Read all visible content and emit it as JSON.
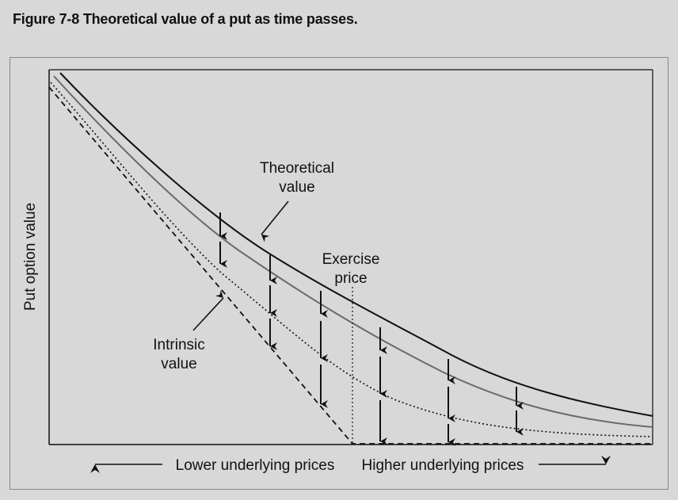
{
  "figure": {
    "title": "Figure 7-8  Theoretical value of a put as time passes."
  },
  "axes": {
    "ylabel": "Put option value",
    "x_left_label": "Lower underlying prices",
    "x_right_label": "Higher underlying prices"
  },
  "annotations": {
    "theoretical": [
      "Theoretical",
      "value"
    ],
    "exercise": [
      "Exercise",
      "price"
    ],
    "intrinsic": [
      "Intrinsic",
      "value"
    ]
  },
  "colors": {
    "theoretical": "#111111",
    "middle": "#6a6a6a",
    "dotted": "#111111",
    "intrinsic": "#111111",
    "background": "#d8d8d8"
  },
  "chart_data": {
    "type": "line",
    "series_styles": [
      "solid",
      "solid-gray",
      "dotted",
      "dashed"
    ],
    "arrow_groups": 6
  }
}
